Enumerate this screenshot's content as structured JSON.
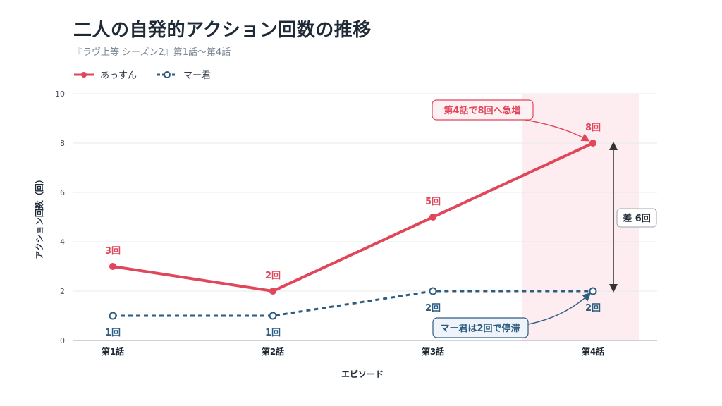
{
  "chart_data": {
    "type": "line",
    "title": "二人の自発的アクション回数の推移",
    "subtitle": "『ラヴ上等 シーズン2』第1話〜第4話",
    "xlabel": "エピソード",
    "ylabel": "アクション回数（回）",
    "categories": [
      "第1話",
      "第2話",
      "第3話",
      "第4話"
    ],
    "ylim": [
      0,
      10
    ],
    "yticks": [
      0,
      2,
      4,
      6,
      8,
      10
    ],
    "grid": true,
    "legend": "top-left",
    "series": [
      {
        "name": "あっすん",
        "values": [
          3,
          2,
          5,
          8
        ],
        "labels": [
          "3回",
          "2回",
          "5回",
          "8回"
        ],
        "color": "#e0475a",
        "style": "solid"
      },
      {
        "name": "マー君",
        "values": [
          1,
          1,
          2,
          2
        ],
        "labels": [
          "1回",
          "1回",
          "2回",
          "2回"
        ],
        "color": "#2e5c80",
        "style": "dashed"
      }
    ],
    "annotations": {
      "surge": "第4話で8回へ急増",
      "stall": "マー君は2回で停滞",
      "diff": "差 6回"
    },
    "highlight_category": "第4話"
  }
}
